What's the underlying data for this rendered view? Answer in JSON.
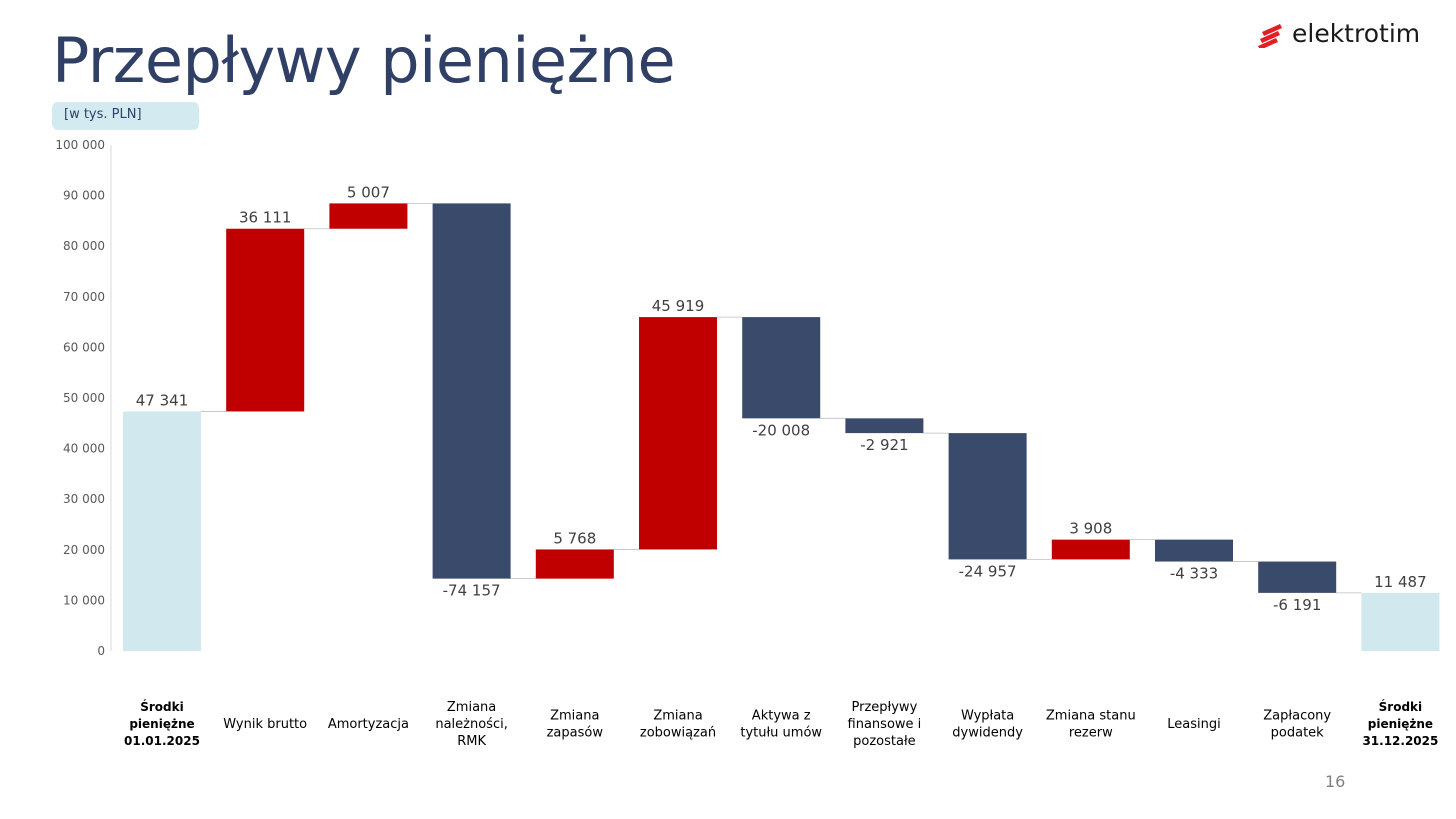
{
  "header": {
    "title": "Przepływy pieniężne",
    "unit": "[w tys. PLN]",
    "logo": "elektrotim",
    "page_number": "16"
  },
  "colors": {
    "total": "#d1e9ee",
    "increase": "#c00000",
    "decrease": "#3a4a6b",
    "axis_text": "#595959",
    "label_text": "#404040",
    "title": "#2f3f66",
    "logo_red": "#e31e24"
  },
  "chart_data": {
    "type": "waterfall",
    "ylim": [
      0,
      100000
    ],
    "yticks": [
      0,
      10000,
      20000,
      30000,
      40000,
      50000,
      60000,
      70000,
      80000,
      90000,
      100000
    ],
    "ytick_labels": [
      "0",
      "10 000",
      "20 000",
      "30 000",
      "40 000",
      "50 000",
      "60 000",
      "70 000",
      "80 000",
      "90 000",
      "100 000"
    ],
    "bars": [
      {
        "category": "Środki pieniężne 01.01.2025",
        "value": 47341,
        "label": "47 341",
        "kind": "total",
        "bold": true
      },
      {
        "category": "Wynik brutto",
        "value": 36111,
        "label": "36 111",
        "kind": "increase",
        "bold": false
      },
      {
        "category": "Amortyzacja",
        "value": 5007,
        "label": "5 007",
        "kind": "increase",
        "bold": false
      },
      {
        "category": "Zmiana należności, RMK",
        "value": -74157,
        "label": "-74 157",
        "kind": "decrease",
        "bold": false
      },
      {
        "category": "Zmiana zapasów",
        "value": 5768,
        "label": "5 768",
        "kind": "increase",
        "bold": false
      },
      {
        "category": "Zmiana zobowiązań",
        "value": 45919,
        "label": "45 919",
        "kind": "increase",
        "bold": false
      },
      {
        "category": "Aktywa z tytułu umów",
        "value": -20008,
        "label": "-20 008",
        "kind": "decrease",
        "bold": false
      },
      {
        "category": "Przepływy finansowe i pozostałe",
        "value": -2921,
        "label": "-2 921",
        "kind": "decrease",
        "bold": false
      },
      {
        "category": "Wypłata dywidendy",
        "value": -24957,
        "label": "-24 957",
        "kind": "decrease",
        "bold": false
      },
      {
        "category": "Zmiana stanu rezerw",
        "value": 3908,
        "label": "3 908",
        "kind": "increase",
        "bold": false
      },
      {
        "category": "Leasingi",
        "value": -4333,
        "label": "-4 333",
        "kind": "decrease",
        "bold": false
      },
      {
        "category": "Zapłacony podatek",
        "value": -6191,
        "label": "-6 191",
        "kind": "decrease",
        "bold": false
      },
      {
        "category": "Środki pieniężne 31.12.2025",
        "value": 11487,
        "label": "11 487",
        "kind": "total",
        "bold": true
      }
    ],
    "category_lines": [
      [
        "Środki",
        "pieniężne",
        "01.01.2025"
      ],
      [
        "Wynik brutto"
      ],
      [
        "Amortyzacja"
      ],
      [
        "Zmiana",
        "należności,",
        "RMK"
      ],
      [
        "Zmiana",
        "zapasów"
      ],
      [
        "Zmiana",
        "zobowiązań"
      ],
      [
        "Aktywa z",
        "tytułu umów"
      ],
      [
        "Przepływy",
        "finansowe i",
        "pozostałe"
      ],
      [
        "Wypłata",
        "dywidendy"
      ],
      [
        "Zmiana stanu",
        "rezerw"
      ],
      [
        "Leasingi"
      ],
      [
        "Zapłacony",
        "podatek"
      ],
      [
        "Środki",
        "pieniężne",
        "31.12.2025"
      ]
    ]
  }
}
